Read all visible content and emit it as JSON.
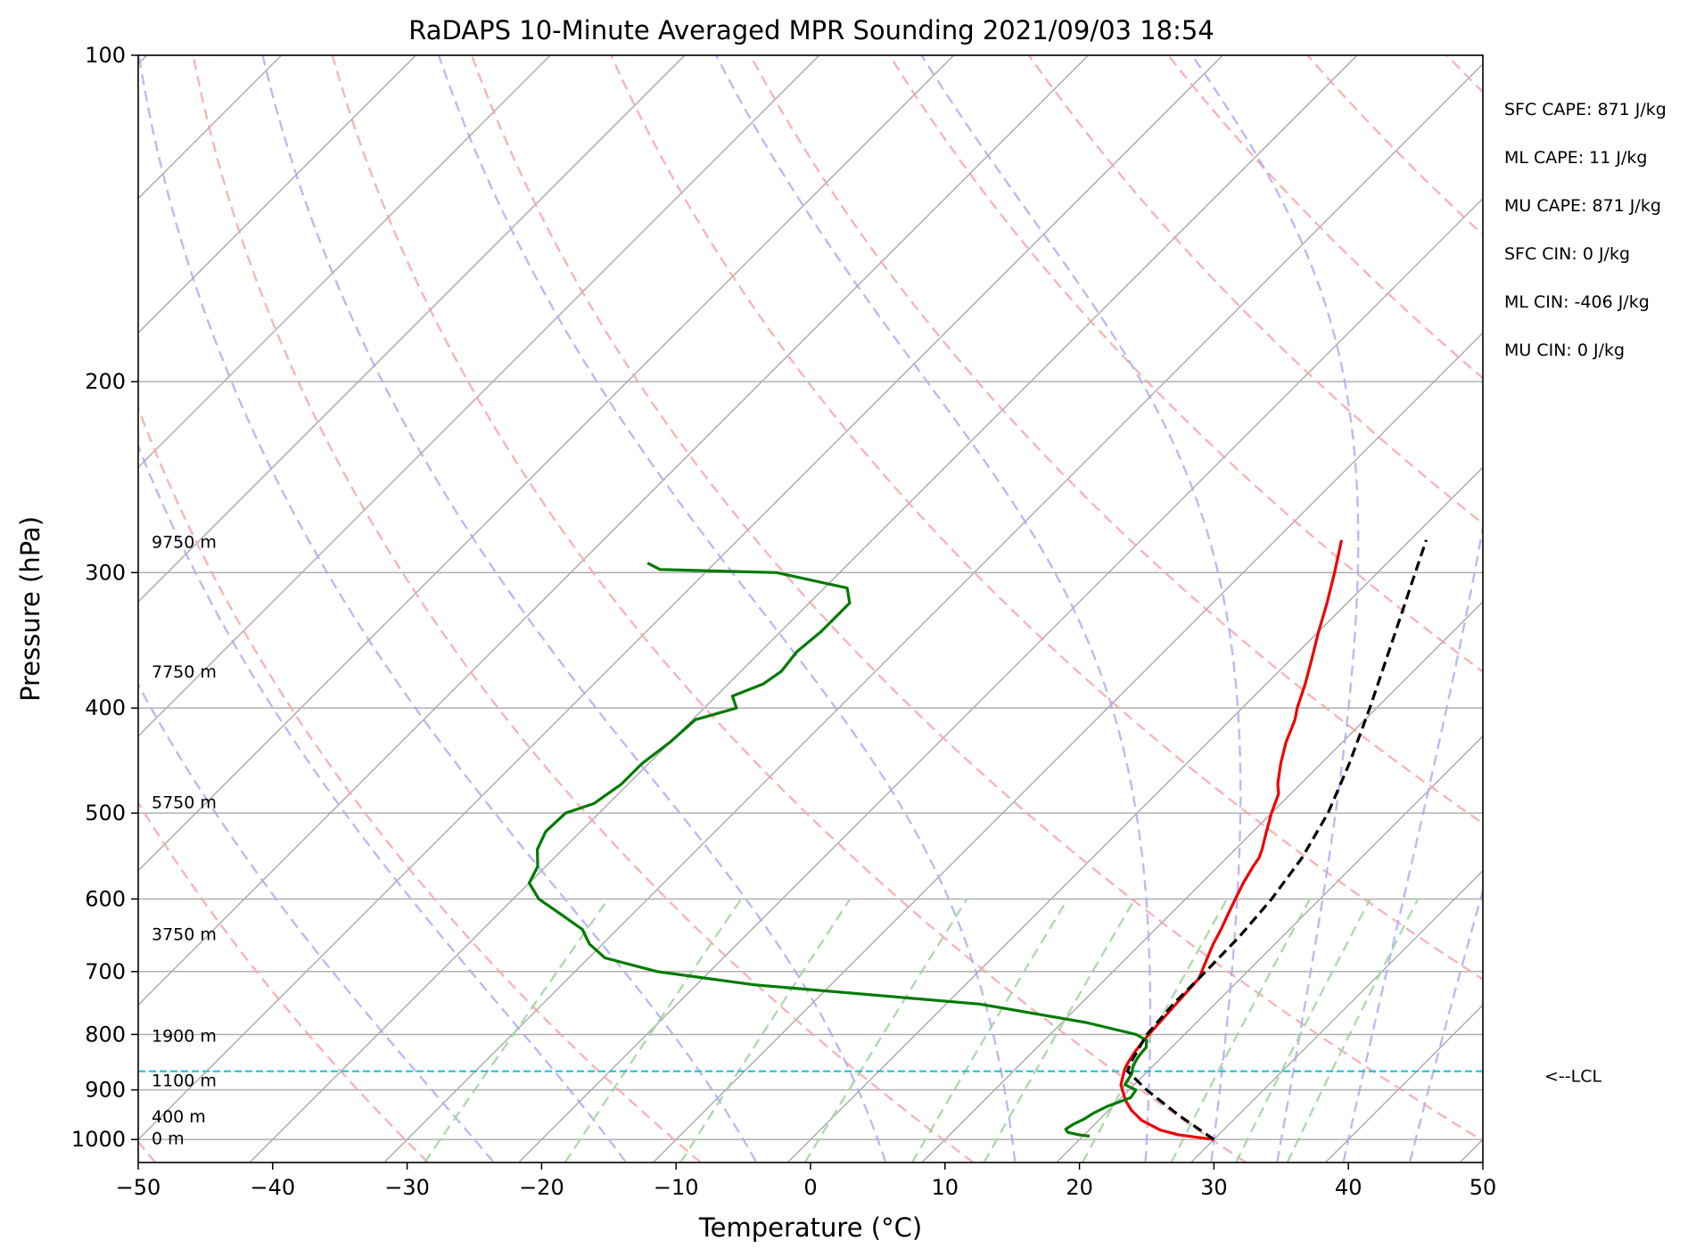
{
  "chart_data": {
    "type": "line",
    "title": "RaDAPS 10-Minute Averaged MPR Sounding 2021/09/03 18:54",
    "xlabel": "Temperature (°C)",
    "ylabel": "Pressure (hPa)",
    "xlim": [
      -50,
      50
    ],
    "ylim": [
      1050,
      100
    ],
    "y_scale": "log",
    "grid": true,
    "x_ticks": [
      -50,
      -40,
      -30,
      -20,
      -10,
      0,
      10,
      20,
      30,
      40,
      50
    ],
    "x_tick_labels": [
      "−50",
      "−40",
      "−30",
      "−20",
      "−10",
      "0",
      "10",
      "20",
      "30",
      "40",
      "50"
    ],
    "y_ticks": [
      100,
      200,
      300,
      400,
      500,
      600,
      700,
      800,
      900,
      1000
    ],
    "y_tick_labels": [
      "100",
      "200",
      "300",
      "400",
      "500",
      "600",
      "700",
      "800",
      "900",
      "1000"
    ],
    "skew_isotherms": [
      -140,
      -130,
      -120,
      -110,
      -100,
      -90,
      -80,
      -70,
      -60,
      -50,
      -40,
      -30,
      -20,
      -10,
      0,
      10,
      20,
      30,
      40,
      50
    ],
    "dry_adiabat_thetas_k": [
      223,
      243,
      263,
      283,
      303,
      323,
      343,
      363,
      383,
      403,
      423,
      443,
      463,
      483
    ],
    "moist_adiabat_start_c": [
      -25,
      -15,
      -5,
      5,
      15,
      25,
      30,
      35,
      40,
      45
    ],
    "mixing_ratio_gkg": [
      0.4,
      1,
      2,
      4,
      7,
      10,
      16,
      24,
      32,
      40
    ],
    "series": [
      {
        "key": "temperature",
        "color": "#ee0000",
        "style": "solid",
        "points": [
          [
            1000,
            30.0
          ],
          [
            990,
            27.0
          ],
          [
            980,
            25.3
          ],
          [
            960,
            23.2
          ],
          [
            940,
            21.7
          ],
          [
            920,
            20.5
          ],
          [
            900,
            19.5
          ],
          [
            890,
            19.0
          ],
          [
            880,
            18.7
          ],
          [
            870,
            18.4
          ],
          [
            860,
            18.1
          ],
          [
            850,
            17.9
          ],
          [
            830,
            17.6
          ],
          [
            810,
            17.4
          ],
          [
            790,
            17.3
          ],
          [
            770,
            17.2
          ],
          [
            750,
            17.1
          ],
          [
            730,
            17.0
          ],
          [
            710,
            16.9
          ],
          [
            700,
            16.6
          ],
          [
            680,
            16.0
          ],
          [
            660,
            15.4
          ],
          [
            640,
            14.9
          ],
          [
            620,
            14.3
          ],
          [
            600,
            13.7
          ],
          [
            580,
            13.1
          ],
          [
            560,
            12.6
          ],
          [
            550,
            12.4
          ],
          [
            540,
            12.0
          ],
          [
            520,
            11.0
          ],
          [
            500,
            10.0
          ],
          [
            480,
            9.1
          ],
          [
            470,
            8.3
          ],
          [
            450,
            7.0
          ],
          [
            430,
            5.8
          ],
          [
            410,
            4.8
          ],
          [
            400,
            4.1
          ],
          [
            380,
            2.9
          ],
          [
            360,
            1.5
          ],
          [
            340,
            0.0
          ],
          [
            320,
            -1.5
          ],
          [
            300,
            -3.2
          ],
          [
            280,
            -5.1
          ]
        ]
      },
      {
        "key": "dewpoint",
        "color": "#007a00",
        "style": "solid",
        "points": [
          [
            993,
            20.5
          ],
          [
            990,
            19.6
          ],
          [
            985,
            18.6
          ],
          [
            978,
            18.2
          ],
          [
            968,
            18.4
          ],
          [
            958,
            18.8
          ],
          [
            945,
            19.1
          ],
          [
            932,
            19.6
          ],
          [
            915,
            20.7
          ],
          [
            900,
            20.5
          ],
          [
            890,
            19.3
          ],
          [
            870,
            19.0
          ],
          [
            855,
            18.5
          ],
          [
            838,
            18.2
          ],
          [
            822,
            18.1
          ],
          [
            810,
            17.6
          ],
          [
            800,
            16.4
          ],
          [
            780,
            11.8
          ],
          [
            750,
            2.5
          ],
          [
            720,
            -15.7
          ],
          [
            700,
            -23.9
          ],
          [
            680,
            -28.8
          ],
          [
            660,
            -31.0
          ],
          [
            640,
            -32.6
          ],
          [
            620,
            -35.3
          ],
          [
            600,
            -38.1
          ],
          [
            580,
            -40.0
          ],
          [
            560,
            -40.6
          ],
          [
            540,
            -41.9
          ],
          [
            520,
            -42.6
          ],
          [
            500,
            -42.5
          ],
          [
            490,
            -41.1
          ],
          [
            470,
            -40.5
          ],
          [
            450,
            -40.5
          ],
          [
            430,
            -40.0
          ],
          [
            410,
            -39.8
          ],
          [
            400,
            -37.6
          ],
          [
            390,
            -38.8
          ],
          [
            380,
            -37.4
          ],
          [
            370,
            -37.0
          ],
          [
            355,
            -37.3
          ],
          [
            340,
            -37.0
          ],
          [
            320,
            -37.0
          ],
          [
            310,
            -38.3
          ],
          [
            300,
            -44.7
          ],
          [
            298,
            -53.6
          ],
          [
            294,
            -55.0
          ]
        ]
      },
      {
        "key": "parcel",
        "color": "#000000",
        "style": "dashed",
        "points": [
          [
            1000,
            30.0
          ],
          [
            950,
            25.6
          ],
          [
            900,
            21.3
          ],
          [
            865,
            18.5
          ],
          [
            850,
            18.1
          ],
          [
            800,
            17.2
          ],
          [
            750,
            16.9
          ],
          [
            700,
            16.9
          ],
          [
            650,
            16.8
          ],
          [
            600,
            16.4
          ],
          [
            550,
            15.6
          ],
          [
            500,
            14.2
          ],
          [
            450,
            12.1
          ],
          [
            400,
            9.5
          ],
          [
            350,
            6.4
          ],
          [
            300,
            2.8
          ],
          [
            280,
            1.2
          ]
        ]
      }
    ],
    "lcl_pressure": 865,
    "lcl_label": "<--LCL",
    "height_labels": [
      {
        "text": "9750 m",
        "p": 281
      },
      {
        "text": "7750 m",
        "p": 370
      },
      {
        "text": "5750 m",
        "p": 488
      },
      {
        "text": "3750 m",
        "p": 646
      },
      {
        "text": "1900 m",
        "p": 802
      },
      {
        "text": "1100 m",
        "p": 881
      },
      {
        "text": "400 m",
        "p": 952
      },
      {
        "text": "0 m",
        "p": 997
      }
    ],
    "stats": [
      "SFC CAPE: 871 J/kg",
      "ML CAPE: 11 J/kg",
      "MU CAPE: 871 J/kg",
      "SFC CIN: 0 J/kg",
      "ML CIN: -406 J/kg",
      "MU CIN: 0 J/kg"
    ],
    "colors": {
      "temperature": "#ee0000",
      "dewpoint": "#007a00",
      "parcel": "#000000",
      "lcl_line": "#17becf",
      "isobar_isotherm": "#aaaaaa",
      "dry_adiabat": "#f5a3a3",
      "moist_adiabat": "#a9a9f5",
      "mixing_ratio": "#9fd39f"
    }
  }
}
